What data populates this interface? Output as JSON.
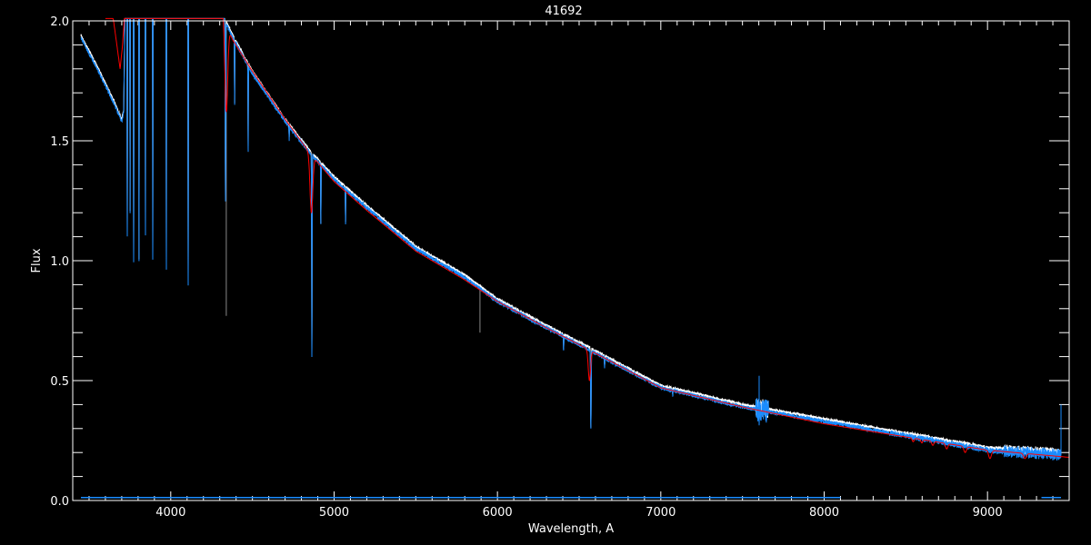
{
  "chart_data": {
    "type": "line",
    "title": "41692",
    "xlabel": "Wavelength, A",
    "ylabel": "Flux",
    "xlim": [
      3400,
      9500
    ],
    "ylim": [
      0.0,
      2.0
    ],
    "x_ticks": [
      4000,
      5000,
      6000,
      7000,
      8000,
      9000
    ],
    "x_tick_labels": [
      "4000",
      "5000",
      "6000",
      "7000",
      "8000",
      "9000"
    ],
    "y_ticks": [
      0.0,
      0.5,
      1.0,
      1.5,
      2.0
    ],
    "y_tick_labels": [
      "0.0",
      "0.5",
      "1.0",
      "1.5",
      "2.0"
    ],
    "grid": false,
    "background": "#000000",
    "colors": {
      "observed": "#1a8cff",
      "observed_alt": "#ffffff",
      "model": "#ff0000",
      "axes": "#ffffff",
      "telluric": "#888888"
    },
    "series": [
      {
        "role": "observed",
        "continuum": [
          [
            3450,
            1.93
          ],
          [
            3550,
            1.8
          ],
          [
            3650,
            1.66
          ],
          [
            3700,
            1.58
          ],
          [
            3712,
            1.62
          ],
          [
            3725,
            2.3
          ],
          [
            4300,
            2.2
          ],
          [
            4330,
            2.0
          ],
          [
            4380,
            1.93
          ],
          [
            4500,
            1.78
          ],
          [
            4700,
            1.58
          ],
          [
            4850,
            1.45
          ],
          [
            5000,
            1.34
          ],
          [
            5200,
            1.22
          ],
          [
            5500,
            1.05
          ],
          [
            5800,
            0.93
          ],
          [
            6000,
            0.83
          ],
          [
            6300,
            0.72
          ],
          [
            6500,
            0.65
          ],
          [
            7000,
            0.47
          ],
          [
            7500,
            0.39
          ],
          [
            8000,
            0.33
          ],
          [
            8500,
            0.27
          ],
          [
            9000,
            0.21
          ],
          [
            9450,
            0.19
          ]
        ],
        "lines": [
          [
            3734,
            1.1,
            1.5
          ],
          [
            3751,
            1.2,
            1.5
          ],
          [
            3773,
            1.0,
            1.5
          ],
          [
            3806,
            1.0,
            1.5
          ],
          [
            3845,
            1.1,
            1.5
          ],
          [
            3890,
            1.0,
            1.5
          ],
          [
            3973,
            0.97,
            1.5
          ],
          [
            4107,
            0.9,
            1.5
          ],
          [
            4335,
            1.25,
            2
          ],
          [
            4391,
            1.65,
            1.5
          ],
          [
            4474,
            1.45,
            1.5
          ],
          [
            4725,
            1.5,
            1.5
          ],
          [
            4864,
            0.6,
            2
          ],
          [
            4919,
            1.15,
            1.5
          ],
          [
            5070,
            1.15,
            1.5
          ],
          [
            6405,
            0.62,
            1.5
          ],
          [
            6572,
            0.3,
            2.5
          ],
          [
            6656,
            0.55,
            1.5
          ],
          [
            7073,
            0.43,
            1.5
          ],
          [
            7602,
            0.36,
            2
          ]
        ]
      },
      {
        "role": "model",
        "continuum": [
          [
            3600,
            2.15
          ],
          [
            3650,
            2.0
          ],
          [
            3690,
            1.8
          ],
          [
            3705,
            1.9
          ],
          [
            3730,
            2.15
          ],
          [
            4300,
            2.15
          ],
          [
            4330,
            2.0
          ],
          [
            4380,
            1.92
          ],
          [
            4500,
            1.79
          ],
          [
            4700,
            1.59
          ],
          [
            4850,
            1.45
          ],
          [
            5000,
            1.33
          ],
          [
            5200,
            1.21
          ],
          [
            5500,
            1.04
          ],
          [
            5800,
            0.92
          ],
          [
            6000,
            0.83
          ],
          [
            6300,
            0.72
          ],
          [
            6500,
            0.65
          ],
          [
            7000,
            0.47
          ],
          [
            7500,
            0.39
          ],
          [
            8000,
            0.32
          ],
          [
            8500,
            0.265
          ],
          [
            9000,
            0.21
          ],
          [
            9500,
            0.18
          ]
        ],
        "lines": [
          [
            4340,
            1.62,
            12
          ],
          [
            4861,
            1.2,
            12
          ],
          [
            6563,
            0.5,
            10
          ],
          [
            8545,
            0.245,
            8
          ],
          [
            8598,
            0.24,
            8
          ],
          [
            8665,
            0.23,
            9
          ],
          [
            8750,
            0.215,
            10
          ],
          [
            8863,
            0.2,
            11
          ],
          [
            9015,
            0.175,
            12
          ],
          [
            9229,
            0.175,
            12
          ]
        ]
      }
    ]
  }
}
